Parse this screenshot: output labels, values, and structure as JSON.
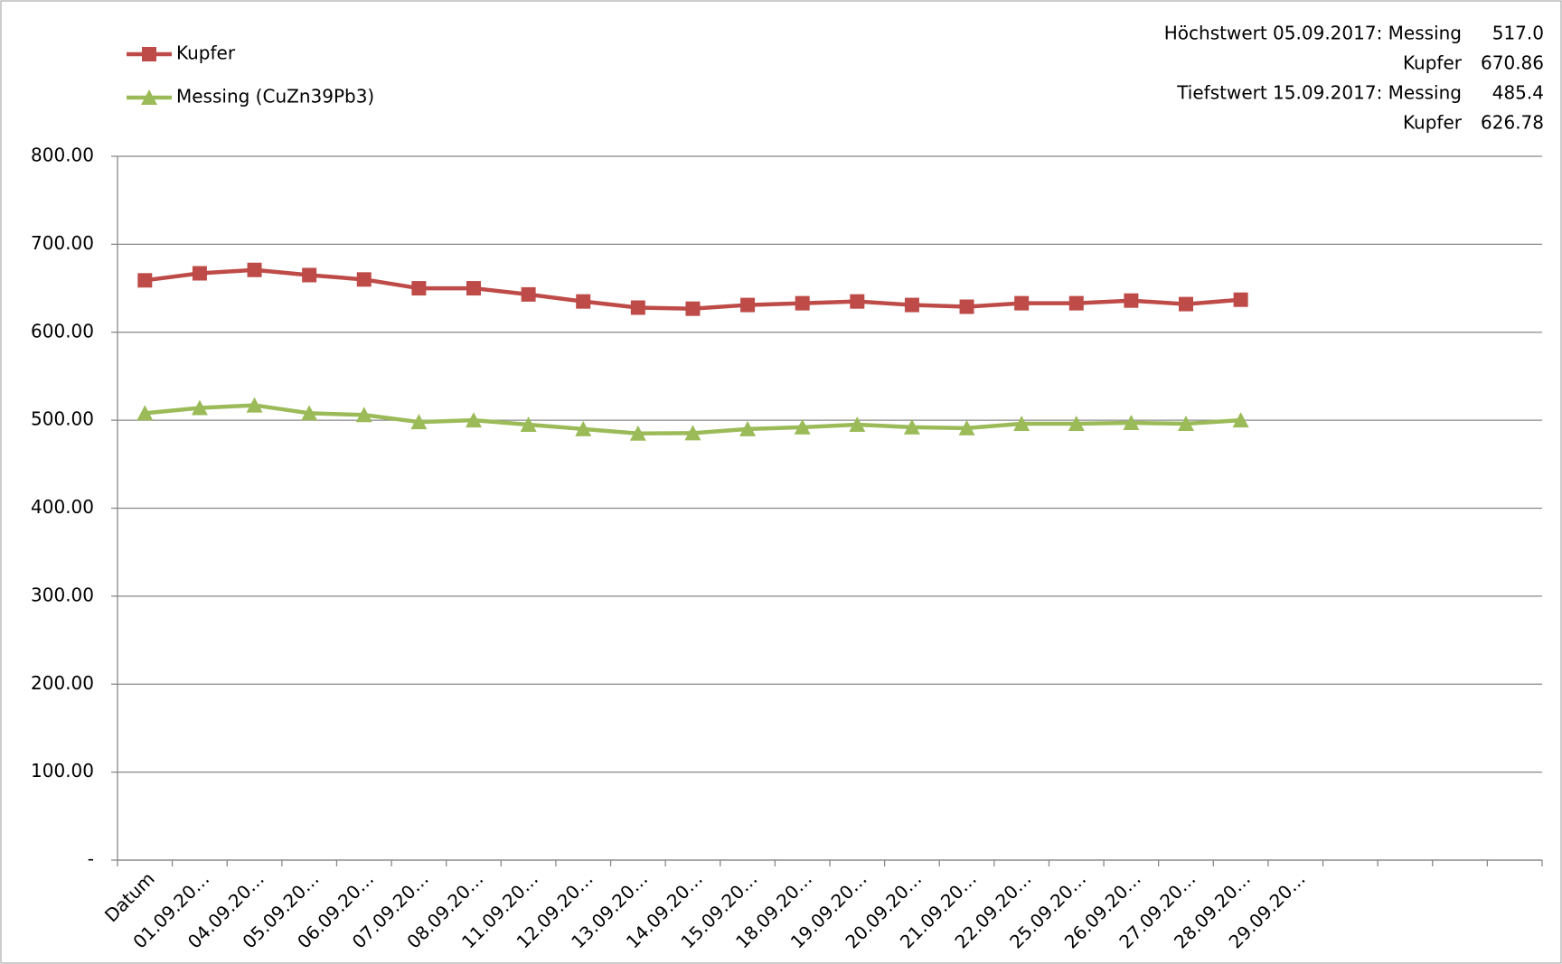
{
  "chart_data": {
    "type": "line",
    "categories": [
      "Datum",
      "01.09.20…",
      "04.09.20…",
      "05.09.20…",
      "06.09.20…",
      "07.09.20…",
      "08.09.20…",
      "11.09.20…",
      "12.09.20…",
      "13.09.20…",
      "14.09.20…",
      "15.09.20…",
      "18.09.20…",
      "19.09.20…",
      "20.09.20…",
      "21.09.20…",
      "22.09.20…",
      "25.09.20…",
      "26.09.20…",
      "27.09.20…",
      "28.09.20…",
      "29.09.20…",
      null,
      null,
      null,
      null
    ],
    "series": [
      {
        "name": "Kupfer",
        "color": "#be4b48",
        "marker": "square",
        "values": [
          659,
          667,
          670.86,
          665,
          660,
          650,
          650,
          643,
          635,
          628,
          626.78,
          631,
          633,
          635,
          631,
          629,
          633,
          633,
          636,
          632,
          637,
          null,
          null,
          null,
          null,
          null
        ]
      },
      {
        "name": "Messing (CuZn39Pb3)",
        "color": "#9bbb59",
        "marker": "triangle",
        "values": [
          508,
          514,
          517.0,
          508,
          506,
          498,
          500,
          495,
          490,
          485,
          485.4,
          490,
          492,
          495,
          492,
          491,
          496,
          496,
          497,
          496,
          500,
          null,
          null,
          null,
          null,
          null
        ]
      }
    ],
    "ylim": [
      0,
      800
    ],
    "yticks": [
      {
        "value": 0,
        "label": "-"
      },
      {
        "value": 100,
        "label": "100.00"
      },
      {
        "value": 200,
        "label": "200.00"
      },
      {
        "value": 300,
        "label": "300.00"
      },
      {
        "value": 400,
        "label": "400.00"
      },
      {
        "value": 500,
        "label": "500.00"
      },
      {
        "value": 600,
        "label": "600.00"
      },
      {
        "value": 700,
        "label": "700.00"
      },
      {
        "value": 800,
        "label": "800.00"
      }
    ],
    "grid": true,
    "legend": "top-left",
    "annotations": [
      [
        "Höchstwert 05.09.2017: Messing",
        "517.0"
      ],
      [
        "Kupfer",
        "670.86"
      ],
      [
        "Tiefstwert  15.09.2017:   Messing",
        "485.4"
      ],
      [
        "Kupfer",
        "626.78"
      ]
    ]
  }
}
